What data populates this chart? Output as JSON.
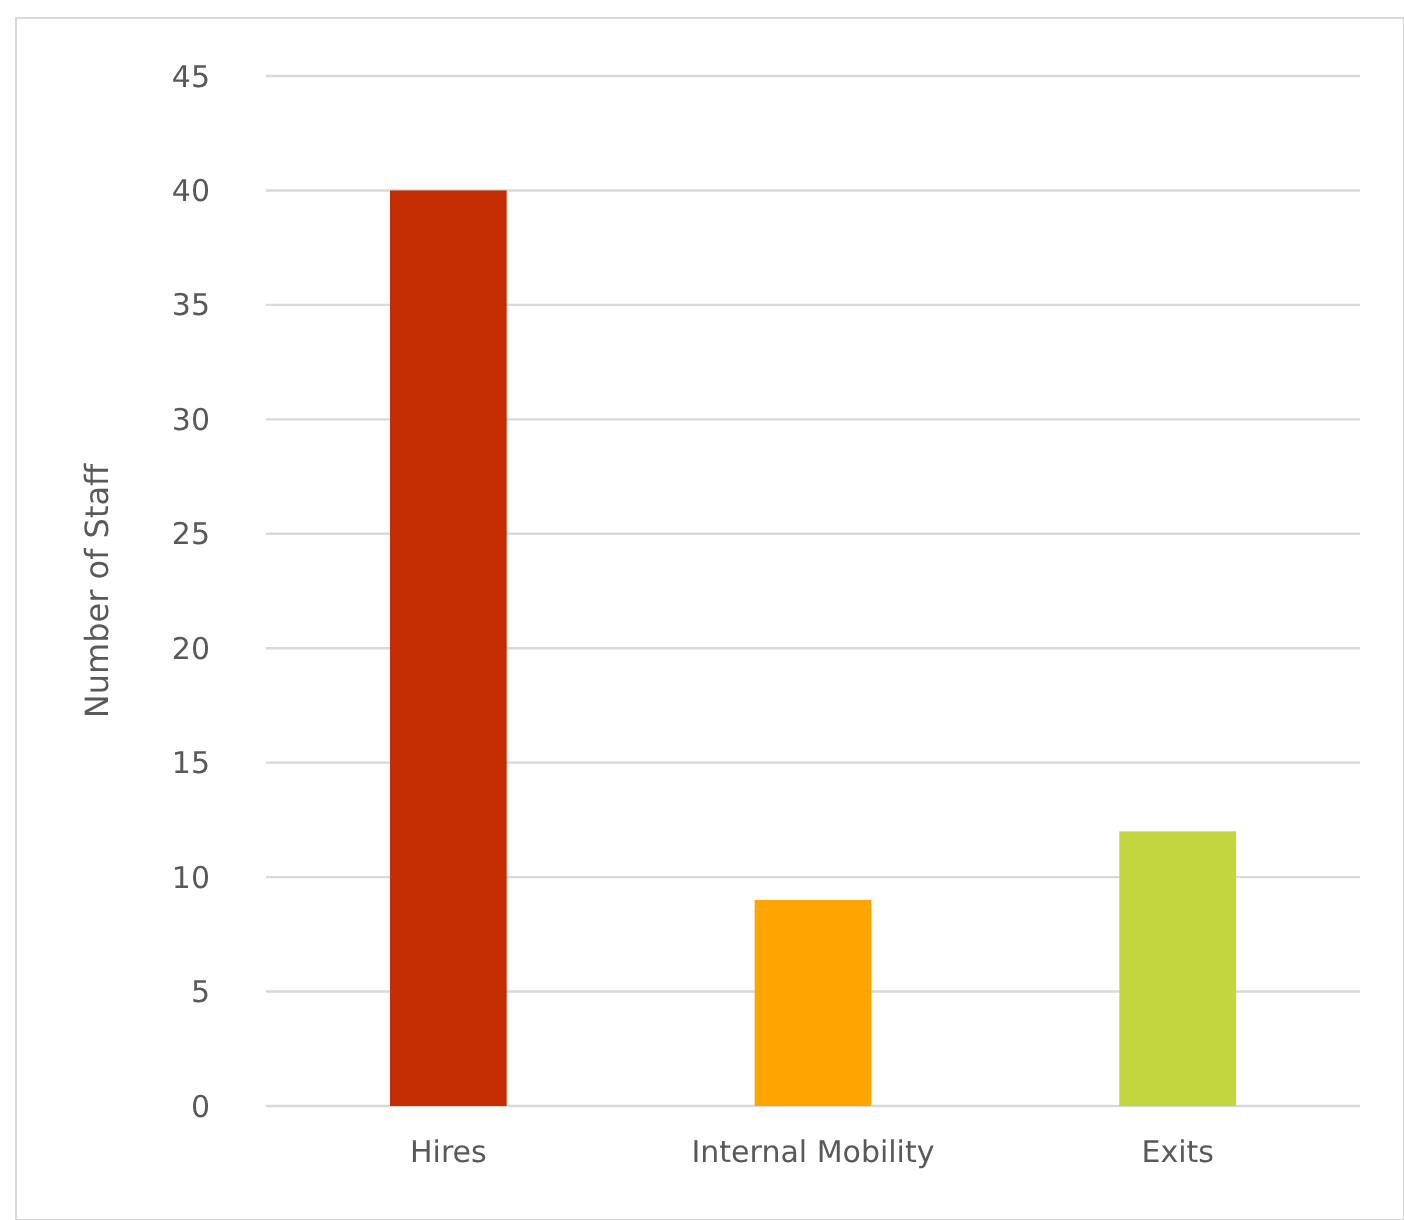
{
  "chart_data": {
    "type": "bar",
    "ylabel": "Number of Staff",
    "categories": [
      "Hires",
      "Internal Mobility",
      "Exits"
    ],
    "values": [
      40,
      9,
      12
    ],
    "colors": [
      "#c42d00",
      "#fea500",
      "#c3d63e"
    ],
    "ylim": [
      0,
      45
    ],
    "yticks": [
      0,
      5,
      10,
      15,
      20,
      25,
      30,
      35,
      40,
      45
    ],
    "grid": "y"
  }
}
